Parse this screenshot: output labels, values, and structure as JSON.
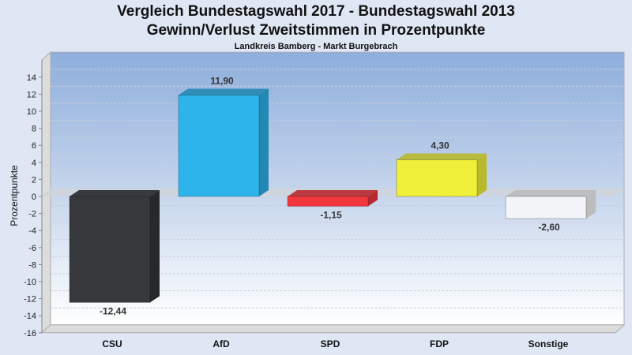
{
  "chart_data": {
    "type": "bar",
    "title": "Vergleich Bundestagswahl 2017 - Bundestagswahl 2013",
    "subtitle": "Gewinn/Verlust Zweitstimmen in Prozentpunkte",
    "subtitle2": "Landkreis Bamberg - Markt Burgebrach",
    "xlabel": "",
    "ylabel": "Prozentpunkte",
    "ylim": [
      -16,
      16
    ],
    "yticks": [
      14,
      12,
      10,
      8,
      6,
      4,
      2,
      0,
      -2,
      -4,
      -6,
      -8,
      -10,
      -12,
      -14,
      -16
    ],
    "categories": [
      "CSU",
      "AfD",
      "SPD",
      "FDP",
      "Sonstige"
    ],
    "values": [
      -12.44,
      11.9,
      -1.15,
      4.3,
      -2.6
    ],
    "labels": [
      "-12,44",
      "11,90",
      "-1,15",
      "4,30",
      "-2,60"
    ],
    "colors": [
      "#36383c",
      "#2db4ea",
      "#f2383e",
      "#f0f03a",
      "#f2f4f8"
    ],
    "sidecolors": [
      "#26282b",
      "#2388b4",
      "#b82a2e",
      "#b9b92c",
      "#bcbcbc"
    ],
    "grid": true
  }
}
